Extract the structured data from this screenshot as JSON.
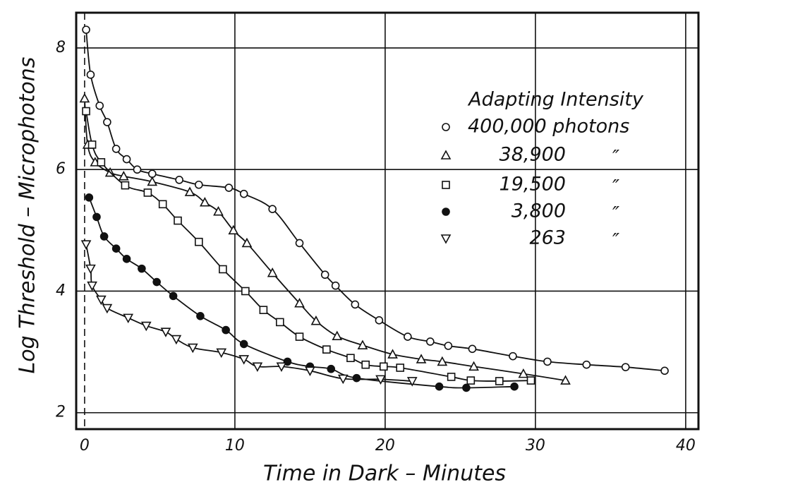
{
  "chart_data": {
    "type": "line",
    "xlabel": "Time in Dark – Minutes",
    "ylabel": "Log Threshold – Microphotons",
    "xlim": [
      -0.56,
      40.85
    ],
    "ylim": [
      1.73,
      8.58
    ],
    "xticks": [
      0,
      10,
      20,
      30,
      40
    ],
    "yticks": [
      2,
      4,
      6,
      8
    ],
    "grid": true,
    "legend": {
      "title": "Adapting Intensity",
      "position": "upper right",
      "ditto": "″"
    },
    "series": [
      {
        "name": "400,000 photons",
        "color": "#111111",
        "marker": "circle-open",
        "x": [
          0.1,
          0.4,
          1.0,
          1.5,
          2.1,
          2.8,
          3.5,
          4.5,
          6.3,
          7.6,
          9.6,
          10.6,
          12.5,
          14.3,
          16.0,
          16.7,
          18.0,
          19.6,
          21.5,
          23.0,
          24.2,
          25.8,
          28.5,
          30.8,
          33.4,
          36.0,
          38.6
        ],
        "values": [
          8.3,
          7.56,
          7.05,
          6.78,
          6.34,
          6.17,
          6.0,
          5.93,
          5.83,
          5.75,
          5.7,
          5.6,
          5.35,
          4.79,
          4.27,
          4.09,
          3.78,
          3.52,
          3.25,
          3.17,
          3.1,
          3.05,
          2.93,
          2.84,
          2.79,
          2.75,
          2.69
        ]
      },
      {
        "name": "38,900",
        "color": "#111111",
        "marker": "triangle",
        "x": [
          0.0,
          0.2,
          0.7,
          1.7,
          2.6,
          4.5,
          7.0,
          8.0,
          8.9,
          9.9,
          10.8,
          12.5,
          14.3,
          15.4,
          16.8,
          18.5,
          20.5,
          22.4,
          23.8,
          25.9,
          29.2,
          32.0
        ],
        "values": [
          7.17,
          6.41,
          6.12,
          5.95,
          5.89,
          5.8,
          5.63,
          5.46,
          5.31,
          5.0,
          4.79,
          4.3,
          3.8,
          3.51,
          3.26,
          3.11,
          2.96,
          2.88,
          2.84,
          2.76,
          2.64,
          2.53
        ]
      },
      {
        "name": "19,500",
        "color": "#111111",
        "marker": "square",
        "x": [
          0.1,
          0.5,
          1.1,
          2.7,
          4.2,
          5.2,
          6.2,
          7.6,
          9.2,
          10.7,
          11.9,
          13.0,
          14.3,
          16.1,
          17.7,
          18.7,
          19.9,
          21.0,
          24.4,
          25.7,
          27.6,
          29.7
        ],
        "values": [
          6.96,
          6.41,
          6.12,
          5.74,
          5.62,
          5.43,
          5.16,
          4.81,
          4.36,
          4.0,
          3.69,
          3.49,
          3.25,
          3.04,
          2.9,
          2.79,
          2.76,
          2.74,
          2.59,
          2.53,
          2.52,
          2.53
        ]
      },
      {
        "name": "3,800",
        "color": "#111111",
        "marker": "circle-filled",
        "x": [
          0.3,
          0.8,
          1.3,
          2.1,
          2.8,
          3.8,
          4.8,
          5.9,
          7.7,
          9.4,
          10.6,
          13.5,
          15.0,
          16.4,
          18.1,
          23.6,
          25.4,
          28.6
        ],
        "values": [
          5.54,
          5.22,
          4.9,
          4.7,
          4.53,
          4.37,
          4.15,
          3.92,
          3.59,
          3.36,
          3.13,
          2.84,
          2.76,
          2.72,
          2.57,
          2.43,
          2.41,
          2.43
        ]
      },
      {
        "name": "263",
        "color": "#111111",
        "marker": "triangle-down",
        "x": [
          0.1,
          0.4,
          0.5,
          1.1,
          1.5,
          2.9,
          4.1,
          5.4,
          6.1,
          7.2,
          9.1,
          10.6,
          11.5,
          13.1,
          15.0,
          17.2,
          19.7,
          21.8
        ],
        "values": [
          4.77,
          4.37,
          4.09,
          3.86,
          3.72,
          3.56,
          3.43,
          3.33,
          3.21,
          3.07,
          2.99,
          2.88,
          2.76,
          2.76,
          2.69,
          2.56,
          2.55,
          2.52
        ]
      }
    ]
  }
}
